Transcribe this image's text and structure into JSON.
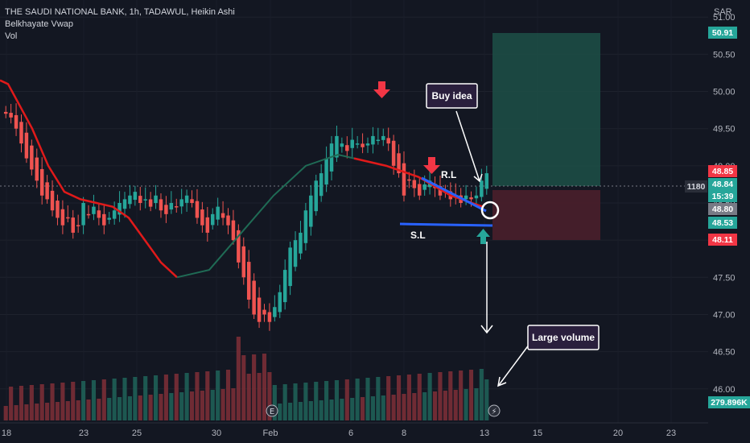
{
  "header": {
    "title": "THE SAUDI NATIONAL BANK, 1h, TADAWUL, Heikin Ashi",
    "indicator": "Belkhayate Vwap",
    "volume_label": "Vol",
    "currency": "SAR"
  },
  "chart_data": {
    "type": "candlestick",
    "x_ticks": [
      "18",
      "23",
      "25",
      "30",
      "Feb",
      "6",
      "8",
      "13",
      "15",
      "20",
      "23"
    ],
    "y_ticks": [
      51.0,
      50.5,
      50.0,
      49.5,
      49.0,
      48.5,
      48.0,
      47.5,
      47.0,
      46.5,
      46.0
    ],
    "ylim": [
      45.9,
      51.1
    ],
    "price_tags": [
      {
        "value": "50.91",
        "color": "#26a69a"
      },
      {
        "value": "48.85",
        "color": "#f23645"
      },
      {
        "value": "48.84",
        "color": "#26a69a"
      },
      {
        "value": "15:39",
        "color": "#26a69a"
      },
      {
        "value": "48.80",
        "color": "#787b86"
      },
      {
        "value": "48.53",
        "color": "#26a69a"
      },
      {
        "value": "48.11",
        "color": "#f23645"
      }
    ],
    "volume_tag": "279.896K",
    "crosshair_label": "1180",
    "candles_close": [
      49.7,
      49.65,
      49.5,
      49.3,
      49.1,
      48.95,
      48.8,
      48.6,
      48.55,
      48.4,
      48.3,
      48.2,
      48.3,
      48.1,
      48.2,
      48.5,
      48.35,
      48.45,
      48.3,
      48.2,
      48.3,
      48.4,
      48.5,
      48.55,
      48.6,
      48.65,
      48.5,
      48.55,
      48.45,
      48.6,
      48.4,
      48.35,
      48.5,
      48.45,
      48.55,
      48.6,
      48.5,
      48.3,
      48.2,
      48.1,
      48.35,
      48.45,
      48.3,
      48.2,
      48.0,
      47.7,
      47.5,
      47.2,
      47.0,
      46.9,
      47.0,
      46.9,
      47.1,
      47.3,
      47.6,
      47.9,
      48.0,
      48.1,
      48.4,
      48.6,
      48.8,
      48.9,
      49.1,
      49.3,
      49.4,
      49.3,
      49.2,
      49.35,
      49.3,
      49.25,
      49.3,
      49.4,
      49.35,
      49.4,
      49.3,
      49.0,
      48.9,
      48.6,
      48.8,
      48.7,
      48.6,
      48.75,
      48.8,
      48.7,
      48.6,
      48.65,
      48.55,
      48.6,
      48.5,
      48.6,
      48.55,
      48.6,
      48.8,
      48.9
    ],
    "vwap_red": [
      [
        0,
        50.15
      ],
      [
        5,
        50.1
      ],
      [
        10,
        49.9
      ],
      [
        20,
        49.5
      ],
      [
        30,
        49.0
      ],
      [
        40,
        48.65
      ],
      [
        50,
        48.55
      ],
      [
        60,
        48.5
      ],
      [
        70,
        48.45
      ],
      [
        80,
        48.3
      ],
      [
        90,
        48.0
      ],
      [
        100,
        47.7
      ],
      [
        110,
        47.5
      ]
    ],
    "vwap_teal": [
      [
        110,
        47.5
      ],
      [
        130,
        47.6
      ],
      [
        150,
        48.1
      ],
      [
        170,
        48.6
      ],
      [
        190,
        49.0
      ],
      [
        210,
        49.15
      ],
      [
        220,
        49.1
      ]
    ],
    "vwap_red2": [
      [
        220,
        49.1
      ],
      [
        240,
        49.0
      ],
      [
        260,
        48.85
      ],
      [
        280,
        48.6
      ],
      [
        300,
        48.45
      ]
    ],
    "annotations": {
      "resistance_label": "R.L",
      "support_label": "S.L",
      "buy_idea": "Buy idea",
      "large_volume": "Large volume"
    }
  }
}
